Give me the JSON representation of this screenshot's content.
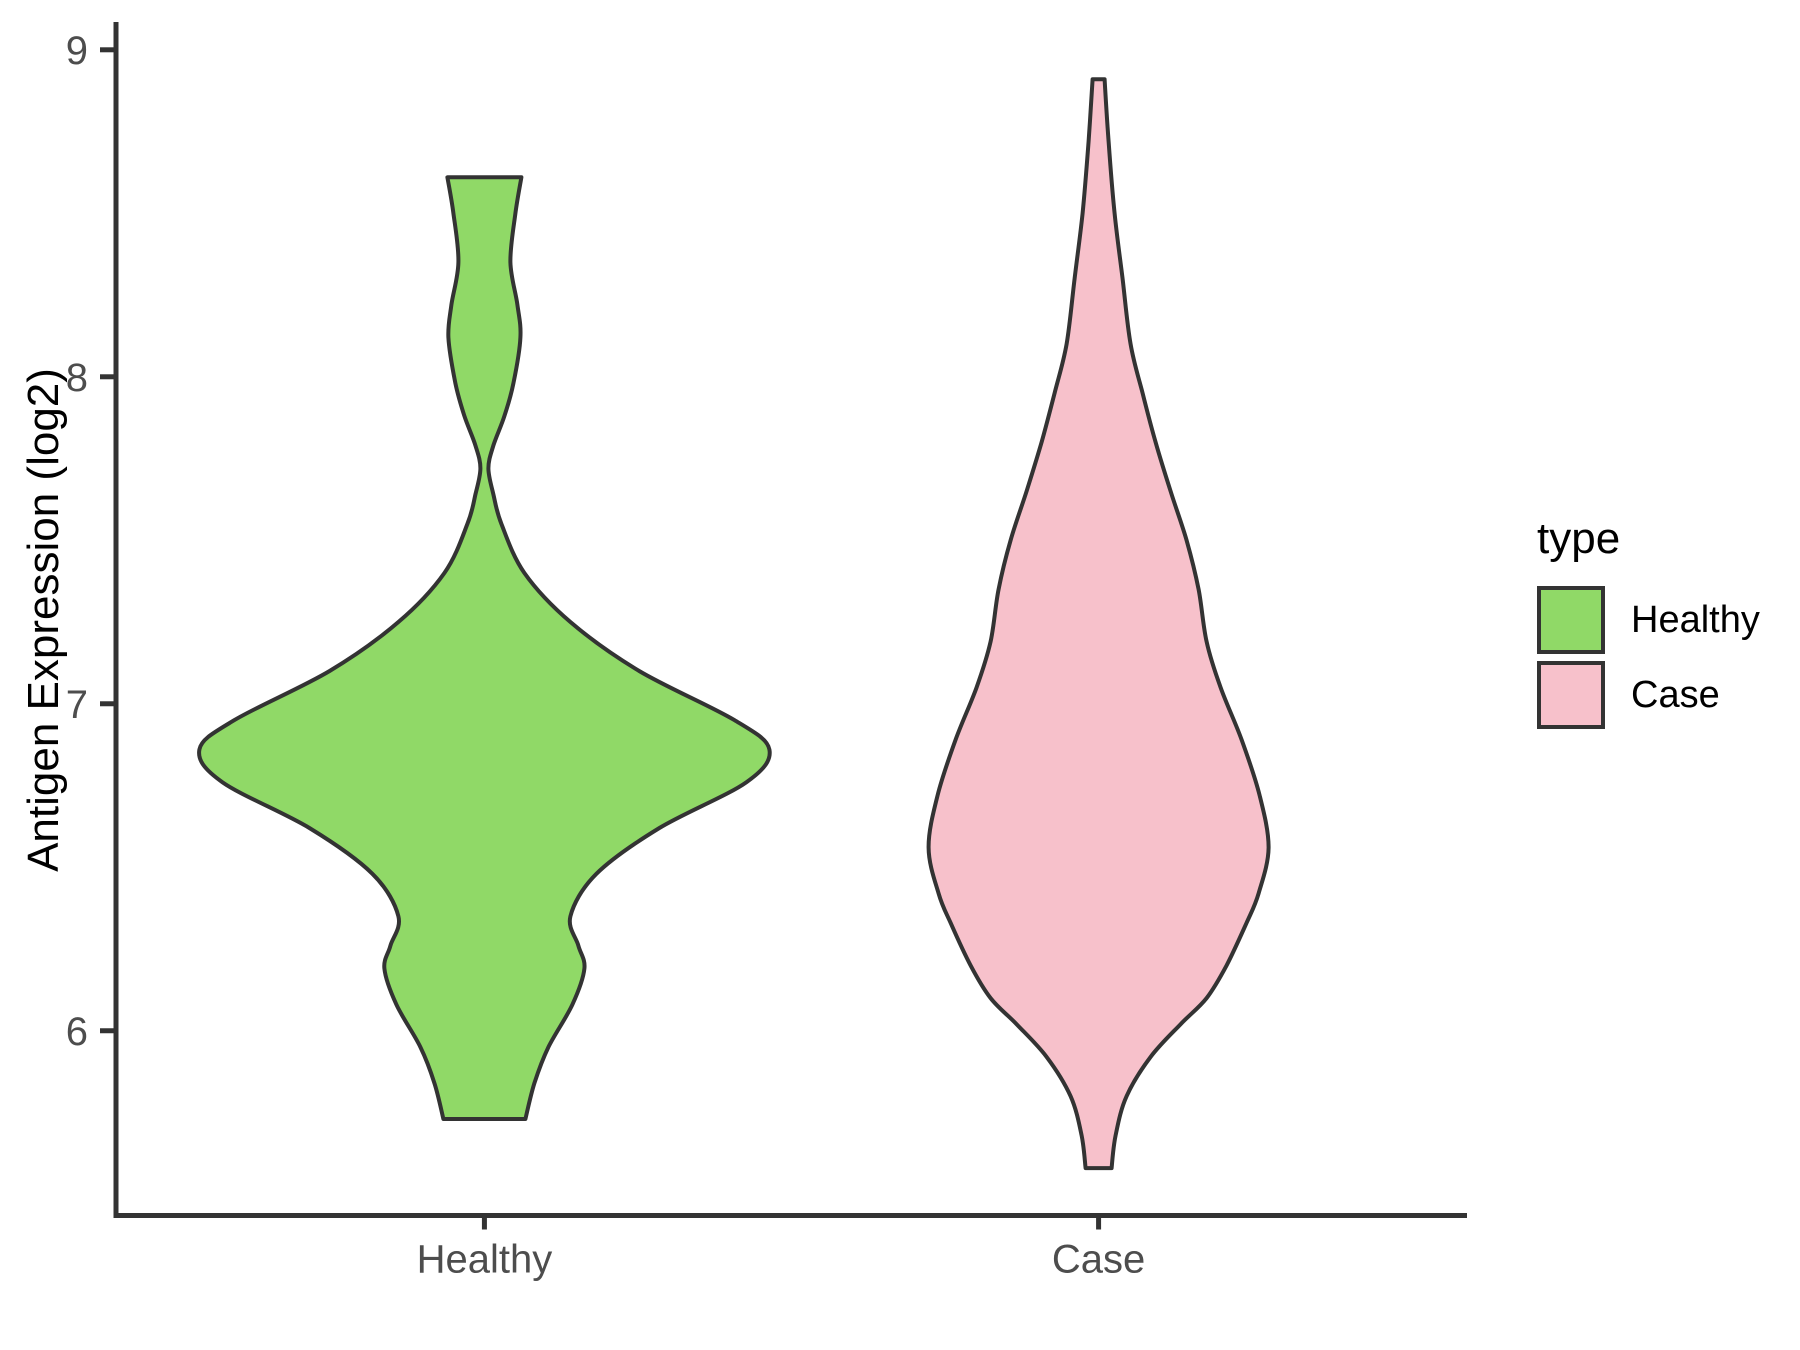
{
  "figure": {
    "background": "#FFFFFF"
  },
  "chart_data": {
    "type": "violin",
    "title": "",
    "xlabel": "",
    "ylabel": "Antigen Expression (log2)",
    "categories": [
      "Healthy",
      "Case"
    ],
    "y_ticks": [
      9,
      8,
      7,
      6
    ],
    "ylim": [
      5.435,
      9.085
    ],
    "grid": "off",
    "axis_color": "#333333",
    "tick_label_color": "#4D4D4D",
    "outline_color": "#333333",
    "legend": {
      "title": "type",
      "position": "right",
      "entries": [
        {
          "label": "Healthy",
          "color": "#90D967"
        },
        {
          "label": "Case",
          "color": "#F7C1CB"
        }
      ]
    },
    "series": [
      {
        "name": "Healthy",
        "fill": "#90D967",
        "x_frac": 0.2727,
        "value_range": [
          5.73,
          8.61
        ],
        "profile": [
          [
            8.61,
            37
          ],
          [
            8.5,
            31
          ],
          [
            8.35,
            26
          ],
          [
            8.22,
            33
          ],
          [
            8.12,
            36
          ],
          [
            7.98,
            29
          ],
          [
            7.88,
            20
          ],
          [
            7.79,
            9
          ],
          [
            7.72,
            4
          ],
          [
            7.64,
            9
          ],
          [
            7.55,
            17
          ],
          [
            7.4,
            40
          ],
          [
            7.25,
            86
          ],
          [
            7.1,
            155
          ],
          [
            6.95,
            250
          ],
          [
            6.86,
            285
          ],
          [
            6.76,
            262
          ],
          [
            6.62,
            175
          ],
          [
            6.48,
            112
          ],
          [
            6.35,
            86
          ],
          [
            6.26,
            94
          ],
          [
            6.19,
            100
          ],
          [
            6.08,
            88
          ],
          [
            5.95,
            64
          ],
          [
            5.84,
            50
          ],
          [
            5.73,
            41
          ]
        ]
      },
      {
        "name": "Case",
        "fill": "#F7C1CB",
        "x_frac": 0.7273,
        "value_range": [
          5.58,
          8.91
        ],
        "profile": [
          [
            8.91,
            6
          ],
          [
            8.72,
            10
          ],
          [
            8.5,
            16
          ],
          [
            8.3,
            24
          ],
          [
            8.1,
            32
          ],
          [
            7.95,
            44
          ],
          [
            7.8,
            57
          ],
          [
            7.65,
            72
          ],
          [
            7.5,
            88
          ],
          [
            7.35,
            100
          ],
          [
            7.19,
            108
          ],
          [
            7.05,
            122
          ],
          [
            6.89,
            143
          ],
          [
            6.72,
            161
          ],
          [
            6.56,
            170
          ],
          [
            6.42,
            160
          ],
          [
            6.33,
            148
          ],
          [
            6.2,
            128
          ],
          [
            6.1,
            108
          ],
          [
            6.02,
            82
          ],
          [
            5.92,
            52
          ],
          [
            5.8,
            28
          ],
          [
            5.68,
            17
          ],
          [
            5.58,
            13
          ]
        ]
      }
    ]
  }
}
